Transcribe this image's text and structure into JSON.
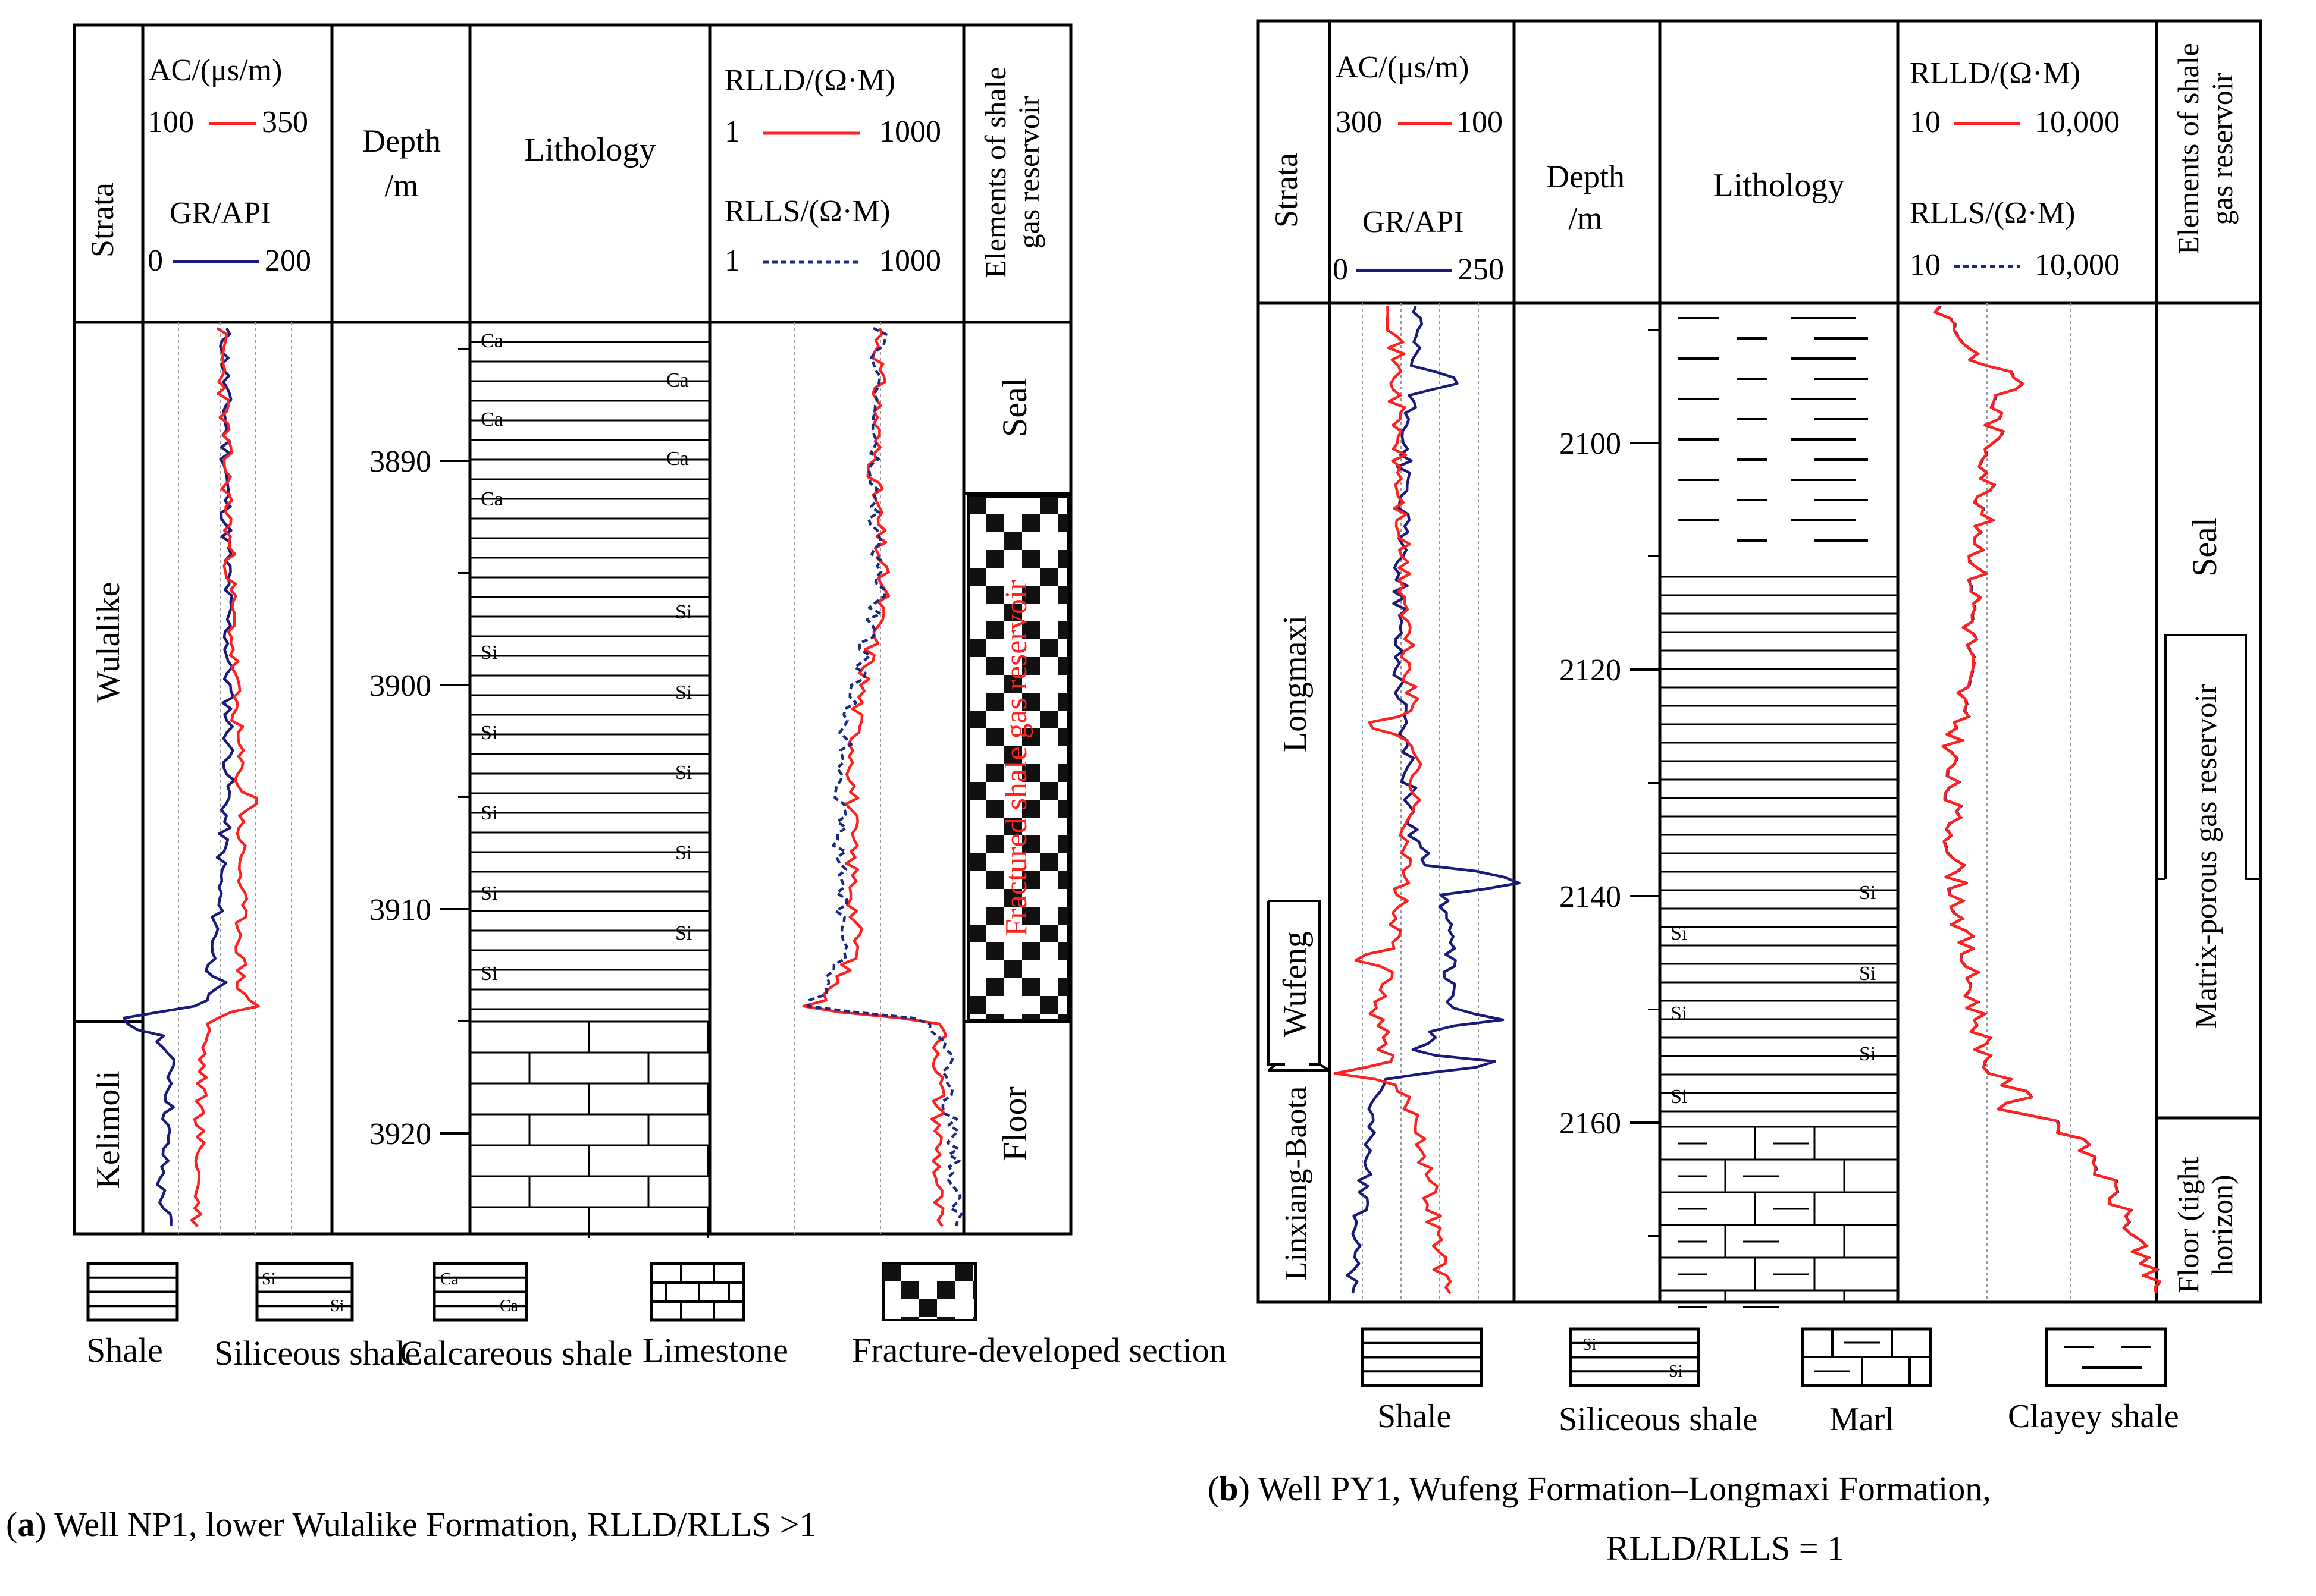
{
  "panels": {
    "a": {
      "caption_letter": "a",
      "caption_text": " Well NP1, lower Wulalike Formation, RLLD/RLLS >1",
      "headers": {
        "strata": "Strata",
        "ac_label": "AC/(μs/m)",
        "ac_min": "100",
        "ac_max": "350",
        "gr_label": "GR/API",
        "gr_min": "0",
        "gr_max": "200",
        "depth": [
          "Depth",
          "/m"
        ],
        "lithology": "Lithology",
        "rlld_label": "RLLD/(Ω·M)",
        "rlld_min": "1",
        "rlld_max": "1000",
        "rlls_label": "RLLS/(Ω·M)",
        "rlls_min": "1",
        "rlls_max": "1000",
        "elements": [
          "Elements of shale",
          "gas reservoir"
        ]
      },
      "strata": [
        "Wulalike",
        "Kelimoli"
      ],
      "depth_ticks": [
        "3890",
        "3900",
        "3910",
        "3920"
      ],
      "elements": [
        "Seal",
        "Fractured shale gas reservoir",
        "Floor"
      ]
    },
    "b": {
      "caption_letter": "b",
      "caption_text": " Well PY1, Wufeng Formation–Longmaxi Formation,",
      "caption_line2": "RLLD/RLLS = 1",
      "headers": {
        "strata": "Strata",
        "ac_label": "AC/(μs/m)",
        "ac_min": "300",
        "ac_max": "100",
        "gr_label": "GR/API",
        "gr_min": "0",
        "gr_max": "250",
        "depth": [
          "Depth",
          "/m"
        ],
        "lithology": "Lithology",
        "rlld_label": "RLLD/(Ω·M)",
        "rlld_min": "10",
        "rlld_max": "10,000",
        "rlls_label": "RLLS/(Ω·M)",
        "rlls_min": "10",
        "rlls_max": "10,000",
        "elements": [
          "Elements of shale",
          "gas reservoir"
        ]
      },
      "strata": [
        "Longmaxi",
        "Wufeng",
        "Linxiang-Baota"
      ],
      "depth_ticks": [
        "2100",
        "2120",
        "2140",
        "2160"
      ],
      "elements": [
        "Seal",
        "Matrix-porous gas reservoir",
        "Floor (tight",
        "horizon)"
      ]
    }
  },
  "lithology_marks": {
    "siliceous": "Si",
    "calcareous": "Ca"
  },
  "legend_a": [
    "Shale",
    "Siliceous shale",
    "Calcareous shale",
    "Limestone",
    "Fracture-developed section"
  ],
  "legend_b": [
    "Shale",
    "Siliceous shale",
    "Marl",
    "Clayey shale"
  ],
  "colors": {
    "ac_curve": "#ff2020",
    "gr_curve": "#1a1a7a",
    "rlld_curve": "#ff2020",
    "rlls_curve": "#1a2a80",
    "grid": "#999999"
  }
}
